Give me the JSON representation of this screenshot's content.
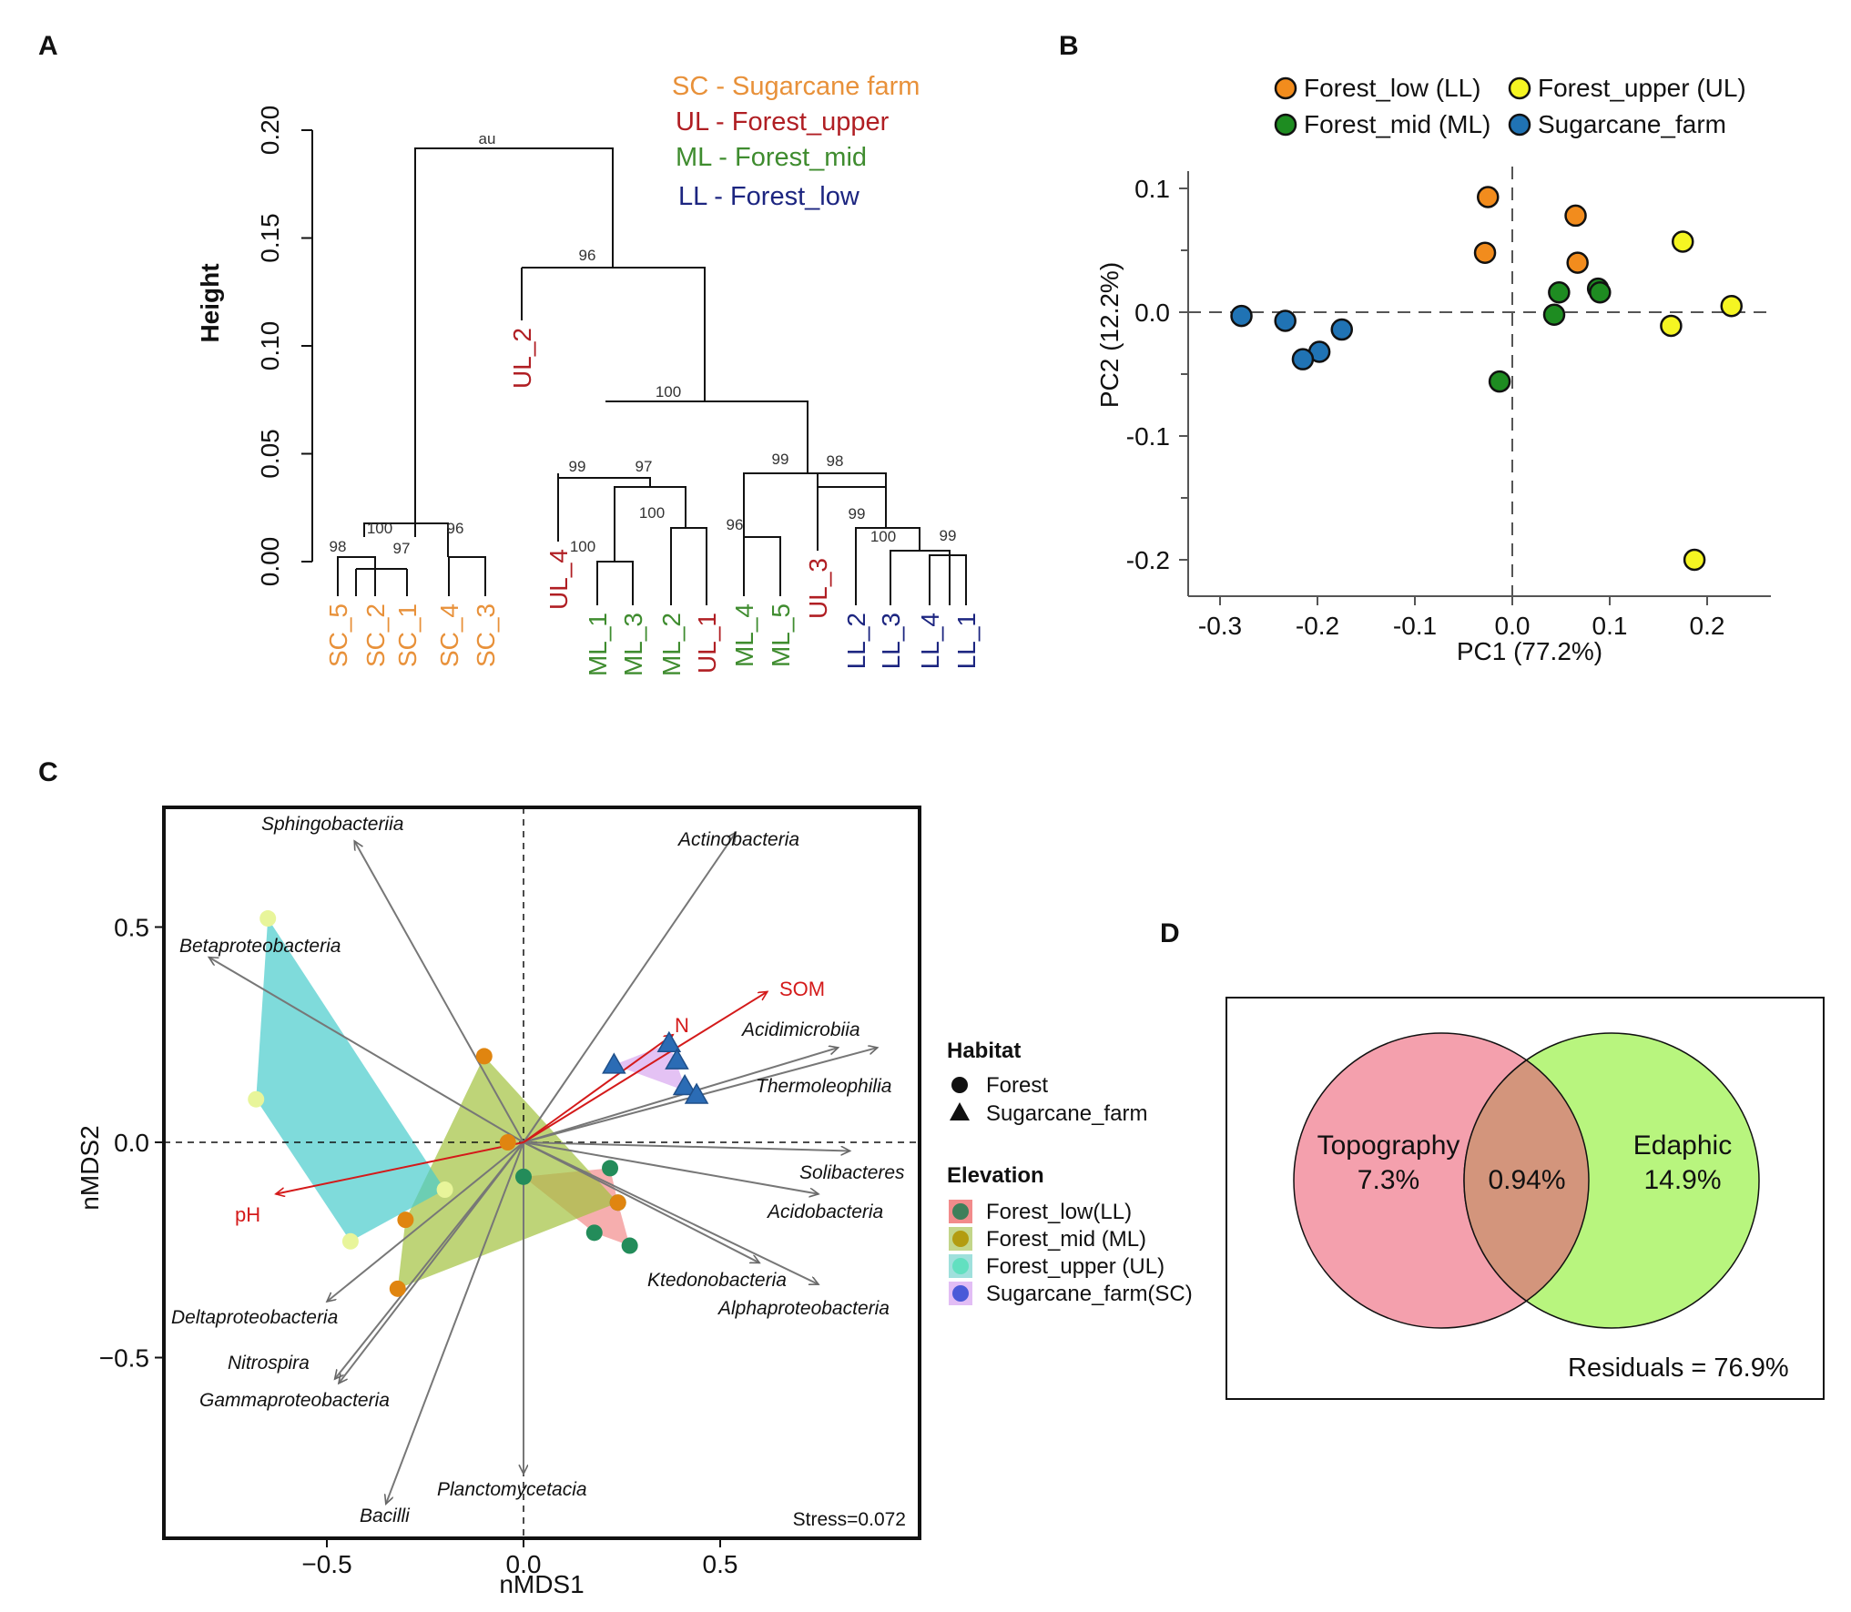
{
  "panels": {
    "A": {
      "label": "A",
      "y_label": "Height",
      "y_ticks": [
        "0.00",
        "0.05",
        "0.10",
        "0.15",
        "0.20"
      ],
      "au_label": "au",
      "legend": [
        {
          "text": "SC - Sugarcane farm",
          "color": "#e8913a"
        },
        {
          "text": "UL - Forest_upper",
          "color": "#b01e23"
        },
        {
          "text": "ML - Forest_mid",
          "color": "#3f8c2f"
        },
        {
          "text": "LL - Forest_low",
          "color": "#1c2580"
        }
      ],
      "node_values": [
        "98",
        "100",
        "97",
        "96",
        "96",
        "100",
        "99",
        "97",
        "100",
        "100",
        "99",
        "98",
        "96",
        "99",
        "100",
        "99"
      ],
      "leaves": [
        {
          "name": "SC_5",
          "color": "#e8913a"
        },
        {
          "name": "SC_2",
          "color": "#e8913a"
        },
        {
          "name": "SC_1",
          "color": "#e8913a"
        },
        {
          "name": "SC_4",
          "color": "#e8913a"
        },
        {
          "name": "SC_3",
          "color": "#e8913a"
        },
        {
          "name": "UL_2",
          "color": "#b01e23"
        },
        {
          "name": "UL_4",
          "color": "#b01e23"
        },
        {
          "name": "ML_1",
          "color": "#3f8c2f"
        },
        {
          "name": "ML_3",
          "color": "#3f8c2f"
        },
        {
          "name": "ML_2",
          "color": "#3f8c2f"
        },
        {
          "name": "UL_1",
          "color": "#b01e23"
        },
        {
          "name": "ML_4",
          "color": "#3f8c2f"
        },
        {
          "name": "ML_5",
          "color": "#3f8c2f"
        },
        {
          "name": "UL_3",
          "color": "#b01e23"
        },
        {
          "name": "LL_2",
          "color": "#1c2580"
        },
        {
          "name": "LL_3",
          "color": "#1c2580"
        },
        {
          "name": "LL_4",
          "color": "#1c2580"
        },
        {
          "name": "LL_1",
          "color": "#1c2580"
        }
      ]
    },
    "B": {
      "label": "B"
    },
    "C": {
      "label": "C"
    },
    "D": {
      "label": "D",
      "left_set": "Topography",
      "left_value": "7.3%",
      "overlap_value": "0.94%",
      "right_set": "Edaphic",
      "right_value": "14.9%",
      "residuals": "Residuals = 76.9%",
      "left_color": "#f4a0ad",
      "right_color": "#b8f57e",
      "overlap_color": "#d3957c"
    }
  },
  "chart_data": [
    {
      "panel": "A",
      "type": "dendrogram",
      "title": "",
      "ylabel": "Height",
      "ylim": [
        0,
        0.2
      ],
      "root_height": 0.19,
      "branch_heights": {
        "sc_cluster": 0.01,
        "forest_cluster": 0.136,
        "forest_sub": 0.073,
        "group_ml_ul": 0.04,
        "group_ll_ml": 0.04
      }
    },
    {
      "panel": "B",
      "type": "scatter",
      "xlabel": "PC1 (77.2%)",
      "ylabel": "PC2 (12.2%)",
      "xlim": [
        -0.32,
        0.27
      ],
      "ylim": [
        -0.23,
        0.11
      ],
      "x_ticks": [
        -0.3,
        -0.2,
        -0.1,
        0.0,
        0.1,
        0.2
      ],
      "x_tick_labels": [
        "-0.3",
        "-0.2",
        "-0.1",
        "0.0",
        "0.1",
        "0.2"
      ],
      "y_ticks": [
        -0.2,
        -0.1,
        0.0,
        0.1
      ],
      "y_tick_labels": [
        "-0.2",
        "-0.1",
        "0.0",
        "0.1"
      ],
      "legend": [
        {
          "name": "Forest_low (LL)",
          "color": "#f28c1d"
        },
        {
          "name": "Forest_upper (UL)",
          "color": "#f5f522"
        },
        {
          "name": "Forest_mid (ML)",
          "color": "#1e8c21"
        },
        {
          "name": "Sugarcane_farm",
          "color": "#2073b4"
        }
      ],
      "series": [
        {
          "name": "Forest_low (LL)",
          "color": "#f28c1d",
          "points": [
            [
              -0.025,
              0.093
            ],
            [
              0.065,
              0.078
            ],
            [
              -0.028,
              0.048
            ],
            [
              0.067,
              0.04
            ]
          ]
        },
        {
          "name": "Forest_upper (UL)",
          "color": "#f5f522",
          "points": [
            [
              0.175,
              0.057
            ],
            [
              0.225,
              0.005
            ],
            [
              0.163,
              -0.011
            ],
            [
              0.187,
              -0.2
            ]
          ]
        },
        {
          "name": "Forest_mid (ML)",
          "color": "#1e8c21",
          "points": [
            [
              0.048,
              0.016
            ],
            [
              0.088,
              0.019
            ],
            [
              0.09,
              0.016
            ],
            [
              0.043,
              -0.002
            ],
            [
              -0.013,
              -0.056
            ]
          ]
        },
        {
          "name": "Sugarcane_farm",
          "color": "#2073b4",
          "points": [
            [
              -0.278,
              -0.003
            ],
            [
              -0.233,
              -0.007
            ],
            [
              -0.175,
              -0.014
            ],
            [
              -0.198,
              -0.032
            ],
            [
              -0.215,
              -0.038
            ]
          ]
        }
      ]
    },
    {
      "panel": "C",
      "type": "scatter",
      "xlabel": "nMDS1",
      "ylabel": "nMDS2",
      "xlim": [
        -0.88,
        0.97
      ],
      "ylim": [
        -0.93,
        0.79
      ],
      "x_ticks": [
        -0.5,
        0.0,
        0.5
      ],
      "x_tick_labels": [
        "−0.5",
        "0.0",
        "0.5"
      ],
      "y_ticks": [
        -0.5,
        0.0,
        0.5
      ],
      "y_tick_labels": [
        "−0.5",
        "0.0",
        "0.5"
      ],
      "stress": "Stress=0.072",
      "taxa_vectors": [
        {
          "name": "Sphingobacteriia",
          "x": -0.43,
          "y": 0.7
        },
        {
          "name": "Actinobacteria",
          "x": 0.54,
          "y": 0.72
        },
        {
          "name": "Betaproteobacteria",
          "x": -0.8,
          "y": 0.43
        },
        {
          "name": "Acidimicrobiia",
          "x": 0.8,
          "y": 0.22
        },
        {
          "name": "Thermoleophilia",
          "x": 0.9,
          "y": 0.22
        },
        {
          "name": "Solibacteres",
          "x": 0.83,
          "y": -0.02
        },
        {
          "name": "Acidobacteria",
          "x": 0.75,
          "y": -0.12
        },
        {
          "name": "Ktedonobacteria",
          "x": 0.6,
          "y": -0.28
        },
        {
          "name": "Alphaproteobacteria",
          "x": 0.75,
          "y": -0.33
        },
        {
          "name": "Deltaproteobacteria",
          "x": -0.5,
          "y": -0.37
        },
        {
          "name": "Nitrospira",
          "x": -0.48,
          "y": -0.55
        },
        {
          "name": "Gammaproteobacteria",
          "x": -0.47,
          "y": -0.56
        },
        {
          "name": "Planctomycetacia",
          "x": 0.0,
          "y": -0.77
        },
        {
          "name": "Bacilli",
          "x": -0.35,
          "y": -0.84
        }
      ],
      "env_vectors": [
        {
          "name": "SOM",
          "x": 0.62,
          "y": 0.35
        },
        {
          "name": "N",
          "x": 0.38,
          "y": 0.25
        },
        {
          "name": "pH",
          "x": -0.63,
          "y": -0.12
        }
      ],
      "groups": [
        {
          "name": "Forest_low(LL)",
          "shape": "circle",
          "fill": "#f28b8b",
          "point_color": "#238c5a",
          "points": [
            [
              0.0,
              -0.08
            ],
            [
              0.22,
              -0.06
            ],
            [
              0.18,
              -0.21
            ],
            [
              0.27,
              -0.24
            ],
            [
              0.24,
              -0.14
            ]
          ]
        },
        {
          "name": "Forest_mid (ML)",
          "shape": "circle",
          "fill": "#a2c23e",
          "point_color": "#e08510",
          "points": [
            [
              -0.1,
              0.2
            ],
            [
              -0.3,
              -0.18
            ],
            [
              -0.32,
              -0.34
            ],
            [
              -0.04,
              0.0
            ],
            [
              0.24,
              -0.14
            ]
          ]
        },
        {
          "name": "Forest_upper (UL)",
          "shape": "circle",
          "fill": "#48cccc",
          "point_color": "#e8f59a",
          "points": [
            [
              -0.65,
              0.52
            ],
            [
              -0.68,
              0.1
            ],
            [
              -0.44,
              -0.23
            ],
            [
              -0.2,
              -0.11
            ]
          ]
        },
        {
          "name": "Sugarcane_farm(SC)",
          "shape": "triangle",
          "fill": "#d8a8f0",
          "point_color": "#2b6cb5",
          "points": [
            [
              0.23,
              0.18
            ],
            [
              0.37,
              0.23
            ],
            [
              0.39,
              0.19
            ],
            [
              0.41,
              0.13
            ],
            [
              0.44,
              0.11
            ]
          ]
        }
      ],
      "legend": {
        "habitat_title": "Habitat",
        "habitat": [
          "Forest",
          "Sugarcane_farm"
        ],
        "elevation_title": "Elevation",
        "elevation": [
          {
            "name": "Forest_low(LL)",
            "fill": "#f28b8b",
            "dot": "#3f7f5a"
          },
          {
            "name": "Forest_mid (ML)",
            "fill": "#c3d68a",
            "dot": "#b39c10"
          },
          {
            "name": "Forest_upper (UL)",
            "fill": "#9fe0dc",
            "dot": "#62e0c0"
          },
          {
            "name": "Sugarcane_farm(SC)",
            "fill": "#e2bdf5",
            "dot": "#4a5ad8"
          }
        ]
      }
    },
    {
      "panel": "D",
      "type": "venn",
      "sets": [
        {
          "name": "Topography",
          "value": 7.3
        },
        {
          "name": "Edaphic",
          "value": 14.9
        }
      ],
      "overlap": 0.94,
      "residuals": 76.9
    }
  ]
}
